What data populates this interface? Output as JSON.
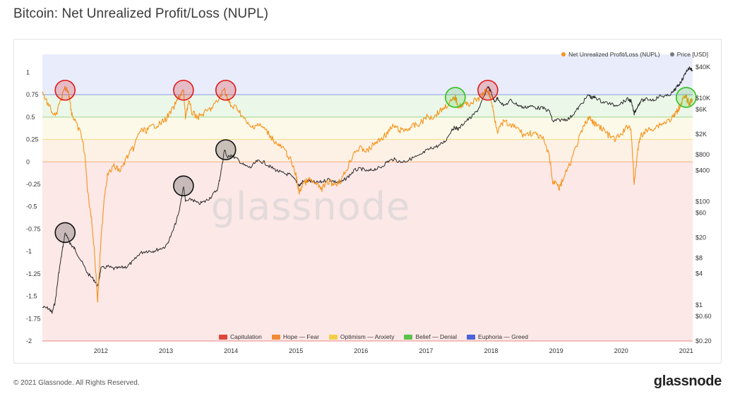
{
  "title": "Bitcoin: Net Unrealized Profit/Loss (NUPL)",
  "watermark": "glassnode",
  "footer": {
    "copyright": "© 2021 Glassnode. All Rights Reserved.",
    "brand": "glassnode"
  },
  "legend_top": [
    {
      "label": "Net Unrealized Profit/Loss (NUPL)",
      "color": "#f7931a"
    },
    {
      "label": "Price [USD]",
      "color": "#777777"
    }
  ],
  "legend_bottom": [
    {
      "label": "Capitulation",
      "color": "#e0453a"
    },
    {
      "label": "Hope — Fear",
      "color": "#f18a32"
    },
    {
      "label": "Optimism — Anxiety",
      "color": "#f2cf4a"
    },
    {
      "label": "Belief — Denial",
      "color": "#5cc14c"
    },
    {
      "label": "Euphoria — Greed",
      "color": "#4a63d8"
    }
  ],
  "chart_data": {
    "type": "line",
    "title": "Bitcoin: Net Unrealized Profit/Loss (NUPL)",
    "grid": true,
    "legend_placement": "top-right",
    "x_tick_labels": [
      "2012",
      "2013",
      "2014",
      "2015",
      "2016",
      "2017",
      "2018",
      "2019",
      "2020",
      "2021"
    ],
    "x_range": [
      2011.1,
      2021.1
    ],
    "y_left": {
      "range": [
        -2,
        1.2
      ],
      "tick_labels": [
        "1",
        "0.75",
        "0.5",
        "0.25",
        "0",
        "-0.25",
        "-0.5",
        "-0.75",
        "-1",
        "-1.25",
        "-1.5",
        "-1.75",
        "-2"
      ],
      "tick_values": [
        1,
        0.75,
        0.5,
        0.25,
        0,
        -0.25,
        -0.5,
        -0.75,
        -1,
        -1.25,
        -1.5,
        -1.75,
        -2
      ]
    },
    "y_right": {
      "scale": "log",
      "range": [
        0.2,
        70000
      ],
      "tick_labels": [
        "$40K",
        "$10K",
        "$6K",
        "$2K",
        "$800",
        "$400",
        "$100",
        "$60",
        "$20",
        "$8",
        "$4",
        "$1",
        "$0.60",
        "$0.20"
      ],
      "tick_values": [
        40000,
        10000,
        6000,
        2000,
        800,
        400,
        100,
        60,
        20,
        8,
        4,
        1,
        0.6,
        0.2
      ]
    },
    "zones": [
      {
        "name": "Euphoria — Greed",
        "from": 0.75,
        "to": 1.2,
        "color": "#4a63d8"
      },
      {
        "name": "Belief — Denial",
        "from": 0.5,
        "to": 0.75,
        "color": "#5cc14c"
      },
      {
        "name": "Optimism — Anxiety",
        "from": 0.25,
        "to": 0.5,
        "color": "#f2cf4a"
      },
      {
        "name": "Hope — Fear",
        "from": 0,
        "to": 0.25,
        "color": "#f18a32"
      },
      {
        "name": "Capitulation",
        "from": -2,
        "to": 0,
        "color": "#e0453a"
      }
    ],
    "series": [
      {
        "name": "Net Unrealized Profit/Loss (NUPL)",
        "axis": "left",
        "color": "#f7931a",
        "points": [
          [
            2011.1,
            0.78
          ],
          [
            2011.2,
            0.62
          ],
          [
            2011.3,
            0.5
          ],
          [
            2011.4,
            0.72
          ],
          [
            2011.45,
            0.82
          ],
          [
            2011.5,
            0.8
          ],
          [
            2011.55,
            0.55
          ],
          [
            2011.6,
            0.45
          ],
          [
            2011.7,
            0.3
          ],
          [
            2011.75,
            0.1
          ],
          [
            2011.8,
            -0.35
          ],
          [
            2011.85,
            -0.6
          ],
          [
            2011.9,
            -1.0
          ],
          [
            2011.95,
            -1.55
          ],
          [
            2012.0,
            -0.9
          ],
          [
            2012.05,
            -0.4
          ],
          [
            2012.1,
            -0.15
          ],
          [
            2012.2,
            -0.05
          ],
          [
            2012.3,
            -0.1
          ],
          [
            2012.4,
            0.05
          ],
          [
            2012.5,
            0.15
          ],
          [
            2012.6,
            0.35
          ],
          [
            2012.7,
            0.35
          ],
          [
            2012.8,
            0.4
          ],
          [
            2012.9,
            0.42
          ],
          [
            2013.0,
            0.48
          ],
          [
            2013.1,
            0.58
          ],
          [
            2013.2,
            0.72
          ],
          [
            2013.27,
            0.8
          ],
          [
            2013.3,
            0.5
          ],
          [
            2013.35,
            0.68
          ],
          [
            2013.4,
            0.55
          ],
          [
            2013.5,
            0.5
          ],
          [
            2013.6,
            0.55
          ],
          [
            2013.7,
            0.6
          ],
          [
            2013.8,
            0.68
          ],
          [
            2013.9,
            0.82
          ],
          [
            2013.95,
            0.7
          ],
          [
            2014.0,
            0.62
          ],
          [
            2014.1,
            0.6
          ],
          [
            2014.2,
            0.48
          ],
          [
            2014.3,
            0.38
          ],
          [
            2014.4,
            0.42
          ],
          [
            2014.5,
            0.38
          ],
          [
            2014.6,
            0.3
          ],
          [
            2014.7,
            0.2
          ],
          [
            2014.8,
            0.15
          ],
          [
            2014.9,
            0.05
          ],
          [
            2015.0,
            -0.15
          ],
          [
            2015.05,
            -0.35
          ],
          [
            2015.1,
            -0.25
          ],
          [
            2015.2,
            -0.2
          ],
          [
            2015.3,
            -0.25
          ],
          [
            2015.4,
            -0.3
          ],
          [
            2015.5,
            -0.22
          ],
          [
            2015.6,
            -0.25
          ],
          [
            2015.7,
            -0.2
          ],
          [
            2015.8,
            -0.05
          ],
          [
            2015.9,
            0.12
          ],
          [
            2016.0,
            0.15
          ],
          [
            2016.1,
            0.12
          ],
          [
            2016.2,
            0.2
          ],
          [
            2016.3,
            0.25
          ],
          [
            2016.4,
            0.32
          ],
          [
            2016.5,
            0.4
          ],
          [
            2016.6,
            0.35
          ],
          [
            2016.7,
            0.36
          ],
          [
            2016.8,
            0.4
          ],
          [
            2016.9,
            0.42
          ],
          [
            2017.0,
            0.5
          ],
          [
            2017.1,
            0.5
          ],
          [
            2017.2,
            0.56
          ],
          [
            2017.3,
            0.62
          ],
          [
            2017.4,
            0.68
          ],
          [
            2017.45,
            0.72
          ],
          [
            2017.5,
            0.62
          ],
          [
            2017.6,
            0.64
          ],
          [
            2017.7,
            0.66
          ],
          [
            2017.8,
            0.7
          ],
          [
            2017.9,
            0.78
          ],
          [
            2017.95,
            0.8
          ],
          [
            2018.0,
            0.7
          ],
          [
            2018.05,
            0.5
          ],
          [
            2018.1,
            0.35
          ],
          [
            2018.2,
            0.45
          ],
          [
            2018.3,
            0.4
          ],
          [
            2018.4,
            0.38
          ],
          [
            2018.5,
            0.3
          ],
          [
            2018.6,
            0.32
          ],
          [
            2018.7,
            0.3
          ],
          [
            2018.8,
            0.25
          ],
          [
            2018.9,
            0.05
          ],
          [
            2018.95,
            -0.25
          ],
          [
            2019.0,
            -0.2
          ],
          [
            2019.05,
            -0.3
          ],
          [
            2019.1,
            -0.2
          ],
          [
            2019.2,
            -0.05
          ],
          [
            2019.3,
            0.15
          ],
          [
            2019.4,
            0.35
          ],
          [
            2019.5,
            0.5
          ],
          [
            2019.55,
            0.45
          ],
          [
            2019.6,
            0.42
          ],
          [
            2019.7,
            0.38
          ],
          [
            2019.8,
            0.3
          ],
          [
            2019.9,
            0.25
          ],
          [
            2020.0,
            0.3
          ],
          [
            2020.1,
            0.4
          ],
          [
            2020.15,
            0.38
          ],
          [
            2020.2,
            -0.25
          ],
          [
            2020.25,
            0.1
          ],
          [
            2020.3,
            0.3
          ],
          [
            2020.4,
            0.35
          ],
          [
            2020.5,
            0.38
          ],
          [
            2020.6,
            0.42
          ],
          [
            2020.7,
            0.45
          ],
          [
            2020.8,
            0.5
          ],
          [
            2020.85,
            0.55
          ],
          [
            2020.9,
            0.62
          ],
          [
            2020.95,
            0.7
          ],
          [
            2021.0,
            0.72
          ],
          [
            2021.05,
            0.65
          ],
          [
            2021.1,
            0.7
          ]
        ]
      },
      {
        "name": "Price [USD]",
        "axis": "right",
        "color": "#2b2b2b",
        "points": [
          [
            2011.1,
            0.9
          ],
          [
            2011.2,
            0.85
          ],
          [
            2011.25,
            0.7
          ],
          [
            2011.3,
            1.2
          ],
          [
            2011.35,
            4
          ],
          [
            2011.4,
            10
          ],
          [
            2011.45,
            25
          ],
          [
            2011.5,
            18
          ],
          [
            2011.55,
            14
          ],
          [
            2011.6,
            12
          ],
          [
            2011.7,
            7
          ],
          [
            2011.8,
            4
          ],
          [
            2011.9,
            3
          ],
          [
            2011.95,
            2.2
          ],
          [
            2012.0,
            5
          ],
          [
            2012.1,
            5.5
          ],
          [
            2012.2,
            5
          ],
          [
            2012.3,
            5.2
          ],
          [
            2012.4,
            5.5
          ],
          [
            2012.5,
            7
          ],
          [
            2012.6,
            10
          ],
          [
            2012.7,
            11
          ],
          [
            2012.8,
            11
          ],
          [
            2012.9,
            12
          ],
          [
            2013.0,
            13.5
          ],
          [
            2013.1,
            25
          ],
          [
            2013.2,
            60
          ],
          [
            2013.27,
            200
          ],
          [
            2013.3,
            100
          ],
          [
            2013.4,
            110
          ],
          [
            2013.5,
            90
          ],
          [
            2013.6,
            100
          ],
          [
            2013.7,
            125
          ],
          [
            2013.8,
            180
          ],
          [
            2013.85,
            400
          ],
          [
            2013.9,
            1000
          ],
          [
            2013.95,
            700
          ],
          [
            2014.0,
            800
          ],
          [
            2014.1,
            650
          ],
          [
            2014.2,
            500
          ],
          [
            2014.3,
            450
          ],
          [
            2014.4,
            600
          ],
          [
            2014.5,
            580
          ],
          [
            2014.6,
            470
          ],
          [
            2014.7,
            400
          ],
          [
            2014.8,
            350
          ],
          [
            2014.9,
            330
          ],
          [
            2015.0,
            250
          ],
          [
            2015.05,
            200
          ],
          [
            2015.1,
            240
          ],
          [
            2015.2,
            250
          ],
          [
            2015.3,
            230
          ],
          [
            2015.4,
            240
          ],
          [
            2015.5,
            270
          ],
          [
            2015.6,
            240
          ],
          [
            2015.7,
            235
          ],
          [
            2015.8,
            300
          ],
          [
            2015.9,
            400
          ],
          [
            2016.0,
            430
          ],
          [
            2016.1,
            380
          ],
          [
            2016.2,
            420
          ],
          [
            2016.3,
            450
          ],
          [
            2016.4,
            580
          ],
          [
            2016.5,
            660
          ],
          [
            2016.6,
            580
          ],
          [
            2016.7,
            610
          ],
          [
            2016.8,
            700
          ],
          [
            2016.9,
            760
          ],
          [
            2017.0,
            950
          ],
          [
            2017.1,
            1100
          ],
          [
            2017.2,
            1200
          ],
          [
            2017.3,
            1500
          ],
          [
            2017.4,
            2500
          ],
          [
            2017.45,
            2700
          ],
          [
            2017.5,
            2500
          ],
          [
            2017.6,
            3500
          ],
          [
            2017.7,
            4300
          ],
          [
            2017.8,
            6000
          ],
          [
            2017.9,
            11000
          ],
          [
            2017.95,
            17000
          ],
          [
            2018.0,
            13000
          ],
          [
            2018.05,
            8500
          ],
          [
            2018.1,
            10000
          ],
          [
            2018.2,
            7000
          ],
          [
            2018.3,
            9000
          ],
          [
            2018.4,
            7500
          ],
          [
            2018.5,
            6500
          ],
          [
            2018.6,
            7000
          ],
          [
            2018.7,
            6500
          ],
          [
            2018.8,
            6400
          ],
          [
            2018.9,
            5500
          ],
          [
            2018.95,
            3500
          ],
          [
            2019.0,
            3700
          ],
          [
            2019.1,
            3800
          ],
          [
            2019.2,
            4000
          ],
          [
            2019.3,
            5500
          ],
          [
            2019.4,
            8000
          ],
          [
            2019.5,
            11500
          ],
          [
            2019.55,
            10000
          ],
          [
            2019.6,
            10500
          ],
          [
            2019.7,
            8500
          ],
          [
            2019.8,
            8000
          ],
          [
            2019.9,
            7200
          ],
          [
            2020.0,
            8000
          ],
          [
            2020.1,
            9500
          ],
          [
            2020.15,
            8800
          ],
          [
            2020.2,
            5000
          ],
          [
            2020.25,
            6800
          ],
          [
            2020.3,
            8800
          ],
          [
            2020.4,
            9500
          ],
          [
            2020.5,
            9200
          ],
          [
            2020.6,
            11000
          ],
          [
            2020.7,
            10800
          ],
          [
            2020.8,
            13000
          ],
          [
            2020.85,
            16000
          ],
          [
            2020.9,
            19000
          ],
          [
            2020.95,
            24000
          ],
          [
            2021.0,
            33000
          ],
          [
            2021.05,
            38000
          ],
          [
            2021.1,
            35000
          ]
        ]
      }
    ],
    "annotations": [
      {
        "type": "circle",
        "color": "red",
        "x": 2011.45,
        "y": 0.8
      },
      {
        "type": "circle",
        "color": "red",
        "x": 2013.27,
        "y": 0.8
      },
      {
        "type": "circle",
        "color": "red",
        "x": 2013.92,
        "y": 0.8
      },
      {
        "type": "circle",
        "color": "green",
        "x": 2017.45,
        "y": 0.72
      },
      {
        "type": "circle",
        "color": "red",
        "x": 2017.95,
        "y": 0.8
      },
      {
        "type": "circle",
        "color": "green",
        "x": 2021.0,
        "y": 0.72
      },
      {
        "type": "circle",
        "color": "black",
        "x": 2011.45,
        "y_price": 25
      },
      {
        "type": "circle",
        "color": "black",
        "x": 2013.27,
        "y_price": 200
      },
      {
        "type": "circle",
        "color": "black",
        "x": 2013.92,
        "y_price": 1000
      }
    ]
  }
}
